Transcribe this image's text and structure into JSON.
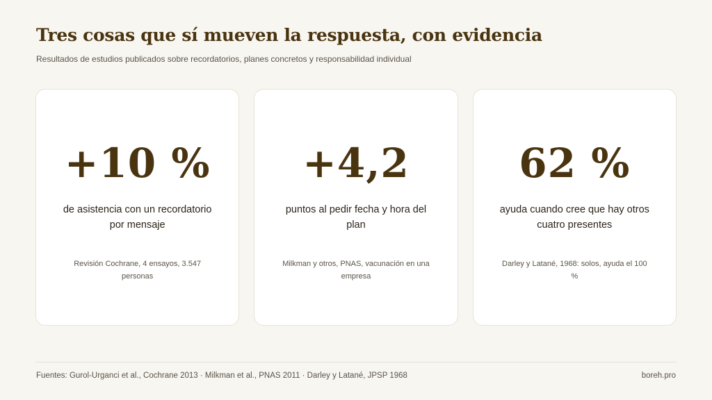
{
  "header": {
    "title": "Tres cosas que sí mueven la respuesta, con evidencia",
    "subtitle": "Resultados de estudios publicados sobre recordatorios, planes concretos y responsabilidad individual"
  },
  "cards": [
    {
      "stat": "+10 %",
      "description": "de asistencia con un recordatorio por mensaje",
      "source": "Revisión Cochrane, 4 ensayos, 3.547 personas"
    },
    {
      "stat": "+4,2",
      "description": "puntos al pedir fecha y hora del plan",
      "source": "Milkman y otros, PNAS, vacunación en una empresa"
    },
    {
      "stat": "62 %",
      "description": "ayuda cuando cree que hay otros cuatro presentes",
      "source": "Darley y Latané, 1968: solos, ayuda el 100 %"
    }
  ],
  "footer": {
    "sources": "Fuentes: Gurol-Urganci et al., Cochrane 2013 · Milkman et al., PNAS 2011 · Darley y Latané, JPSP 1968",
    "brand": "boreh.pro"
  }
}
